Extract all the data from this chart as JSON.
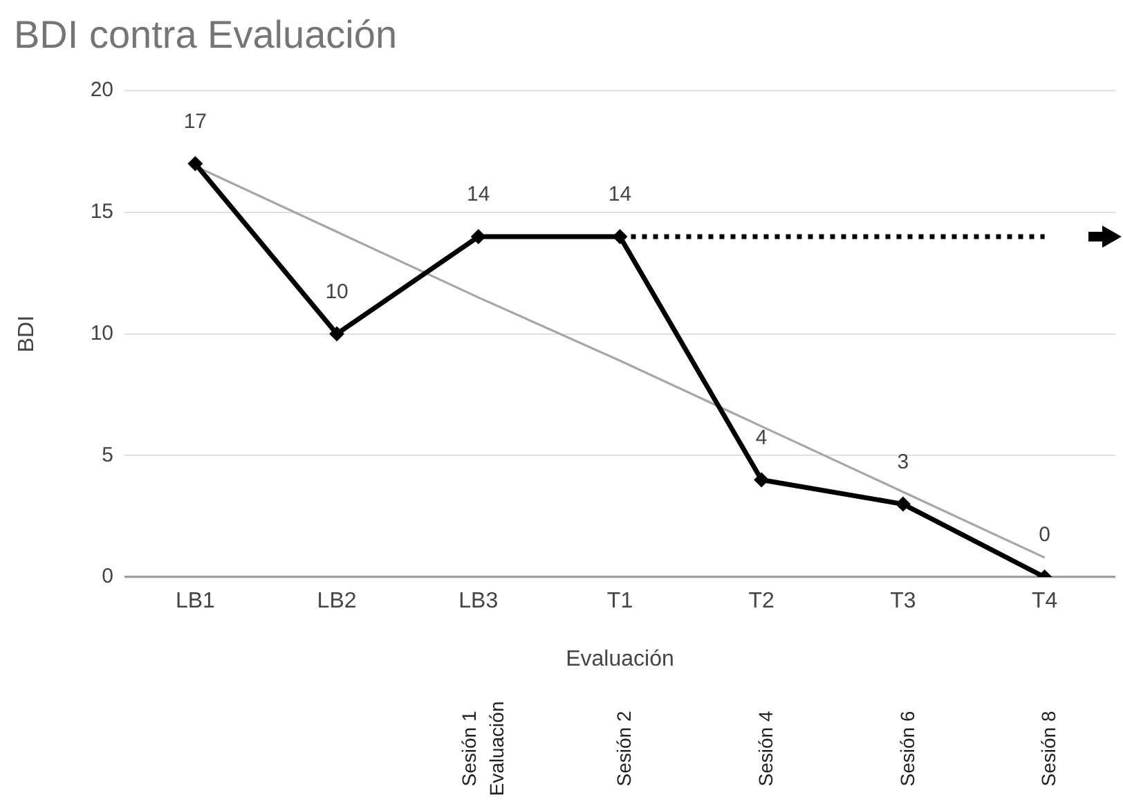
{
  "chart_data": {
    "type": "line",
    "title": "BDI contra Evaluación",
    "xlabel": "Evaluación",
    "ylabel": "BDI",
    "categories": [
      "LB1",
      "LB2",
      "LB3",
      "T1",
      "T2",
      "T3",
      "T4"
    ],
    "ylim": [
      0,
      20
    ],
    "yticks": [
      0,
      5,
      10,
      15,
      20
    ],
    "grid": "y",
    "legend": false,
    "series": [
      {
        "color": "#000000",
        "values": [
          17,
          10,
          14,
          14,
          4,
          3,
          0
        ],
        "marker": "diamond",
        "value_labels": [
          "17",
          "10",
          "14",
          "14",
          "4",
          "3",
          "0"
        ]
      },
      {
        "type": "line",
        "values": [
          null,
          null,
          null,
          14,
          14,
          14,
          14
        ],
        "color": "#000000",
        "marker": "none",
        "line_style": "dotted"
      },
      {
        "type": "line",
        "values": [
          16.9,
          14.2,
          11.5,
          8.9,
          6.2,
          3.5,
          0.8
        ],
        "color": "#a6a6a6",
        "marker": "none"
      }
    ],
    "annotations": [
      "Sesión 1\nEvaluación",
      "Sesión 2",
      "Sesión 4",
      "Sesión 6",
      "Sesión 8"
    ]
  }
}
